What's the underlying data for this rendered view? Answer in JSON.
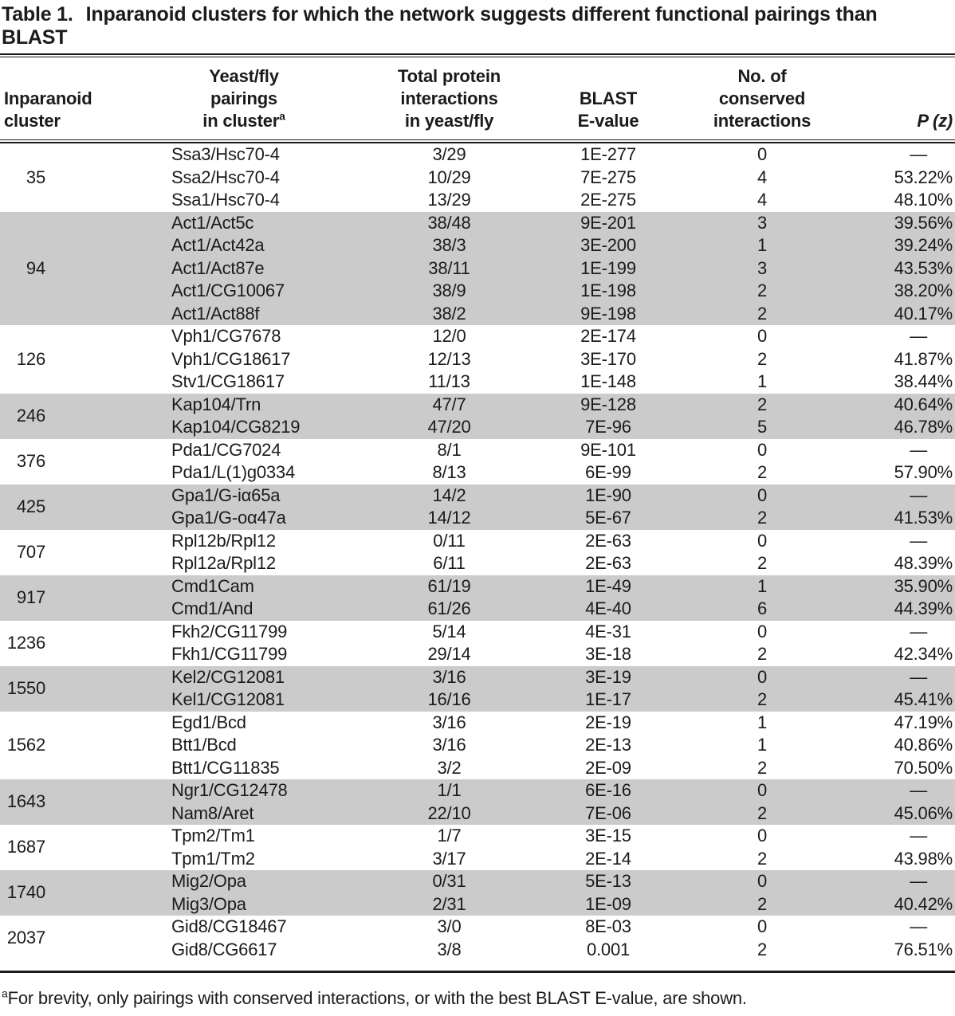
{
  "title": {
    "label": "Table 1.",
    "caption": "Inparanoid clusters for which the network suggests different functional pairings than BLAST"
  },
  "table": {
    "dash": "—",
    "shaded_band_color": "#cbcbcb",
    "rule_color": "#1a1a1a",
    "columns": [
      {
        "key": "cluster",
        "lines": [
          "Inparanoid",
          "cluster"
        ]
      },
      {
        "key": "pairing",
        "lines": [
          "Yeast/fly",
          "pairings",
          "in cluster"
        ],
        "sup": "a"
      },
      {
        "key": "total",
        "lines": [
          "Total protein",
          "interactions",
          "in yeast/fly"
        ]
      },
      {
        "key": "evalue",
        "lines": [
          "BLAST",
          "E-value"
        ]
      },
      {
        "key": "conserved",
        "lines": [
          "No. of",
          "conserved",
          "interactions"
        ]
      },
      {
        "key": "pz",
        "lines": [
          "P (z)"
        ],
        "italic": true
      }
    ],
    "groups": [
      {
        "cluster": "35",
        "shaded": false,
        "rows": [
          [
            "Ssa3/Hsc70-4",
            "3/29",
            "1E-277",
            "0",
            "—"
          ],
          [
            "Ssa2/Hsc70-4",
            "10/29",
            "7E-275",
            "4",
            "53.22%"
          ],
          [
            "Ssa1/Hsc70-4",
            "13/29",
            "2E-275",
            "4",
            "48.10%"
          ]
        ]
      },
      {
        "cluster": "94",
        "shaded": true,
        "rows": [
          [
            "Act1/Act5c",
            "38/48",
            "9E-201",
            "3",
            "39.56%"
          ],
          [
            "Act1/Act42a",
            "38/3",
            "3E-200",
            "1",
            "39.24%"
          ],
          [
            "Act1/Act87e",
            "38/11",
            "1E-199",
            "3",
            "43.53%"
          ],
          [
            "Act1/CG10067",
            "38/9",
            "1E-198",
            "2",
            "38.20%"
          ],
          [
            "Act1/Act88f",
            "38/2",
            "9E-198",
            "2",
            "40.17%"
          ]
        ]
      },
      {
        "cluster": "126",
        "shaded": false,
        "rows": [
          [
            "Vph1/CG7678",
            "12/0",
            "2E-174",
            "0",
            "—"
          ],
          [
            "Vph1/CG18617",
            "12/13",
            "3E-170",
            "2",
            "41.87%"
          ],
          [
            "Stv1/CG18617",
            "11/13",
            "1E-148",
            "1",
            "38.44%"
          ]
        ]
      },
      {
        "cluster": "246",
        "shaded": true,
        "rows": [
          [
            "Kap104/Trn",
            "47/7",
            "9E-128",
            "2",
            "40.64%"
          ],
          [
            "Kap104/CG8219",
            "47/20",
            "7E-96",
            "5",
            "46.78%"
          ]
        ]
      },
      {
        "cluster": "376",
        "shaded": false,
        "rows": [
          [
            "Pda1/CG7024",
            "8/1",
            "9E-101",
            "0",
            "—"
          ],
          [
            "Pda1/L(1)g0334",
            "8/13",
            "6E-99",
            "2",
            "57.90%"
          ]
        ]
      },
      {
        "cluster": "425",
        "shaded": true,
        "rows": [
          [
            "Gpa1/G-iα65a",
            "14/2",
            "1E-90",
            "0",
            "—"
          ],
          [
            "Gpa1/G-oα47a",
            "14/12",
            "5E-67",
            "2",
            "41.53%"
          ]
        ]
      },
      {
        "cluster": "707",
        "shaded": false,
        "rows": [
          [
            "Rpl12b/Rpl12",
            "0/11",
            "2E-63",
            "0",
            "—"
          ],
          [
            "Rpl12a/Rpl12",
            "6/11",
            "2E-63",
            "2",
            "48.39%"
          ]
        ]
      },
      {
        "cluster": "917",
        "shaded": true,
        "rows": [
          [
            "Cmd1Cam",
            "61/19",
            "1E-49",
            "1",
            "35.90%"
          ],
          [
            "Cmd1/And",
            "61/26",
            "4E-40",
            "6",
            "44.39%"
          ]
        ]
      },
      {
        "cluster": "1236",
        "shaded": false,
        "rows": [
          [
            "Fkh2/CG11799",
            "5/14",
            "4E-31",
            "0",
            "—"
          ],
          [
            "Fkh1/CG11799",
            "29/14",
            "3E-18",
            "2",
            "42.34%"
          ]
        ]
      },
      {
        "cluster": "1550",
        "shaded": true,
        "rows": [
          [
            "Kel2/CG12081",
            "3/16",
            "3E-19",
            "0",
            "—"
          ],
          [
            "Kel1/CG12081",
            "16/16",
            "1E-17",
            "2",
            "45.41%"
          ]
        ]
      },
      {
        "cluster": "1562",
        "shaded": false,
        "rows": [
          [
            "Egd1/Bcd",
            "3/16",
            "2E-19",
            "1",
            "47.19%"
          ],
          [
            "Btt1/Bcd",
            "3/16",
            "2E-13",
            "1",
            "40.86%"
          ],
          [
            "Btt1/CG11835",
            "3/2",
            "2E-09",
            "2",
            "70.50%"
          ]
        ]
      },
      {
        "cluster": "1643",
        "shaded": true,
        "rows": [
          [
            "Ngr1/CG12478",
            "1/1",
            "6E-16",
            "0",
            "—"
          ],
          [
            "Nam8/Aret",
            "22/10",
            "7E-06",
            "2",
            "45.06%"
          ]
        ]
      },
      {
        "cluster": "1687",
        "shaded": false,
        "rows": [
          [
            "Tpm2/Tm1",
            "1/7",
            "3E-15",
            "0",
            "—"
          ],
          [
            "Tpm1/Tm2",
            "3/17",
            "2E-14",
            "2",
            "43.98%"
          ]
        ]
      },
      {
        "cluster": "1740",
        "shaded": true,
        "rows": [
          [
            "Mig2/Opa",
            "0/31",
            "5E-13",
            "0",
            "—"
          ],
          [
            "Mig3/Opa",
            "2/31",
            "1E-09",
            "2",
            "40.42%"
          ]
        ]
      },
      {
        "cluster": "2037",
        "shaded": false,
        "rows": [
          [
            "Gid8/CG18467",
            "3/0",
            "8E-03",
            "0",
            "—"
          ],
          [
            "Gid8/CG6617",
            "3/8",
            "0.001",
            "2",
            "76.51%"
          ]
        ]
      }
    ]
  },
  "footnote": {
    "superscript": "a",
    "text": "For brevity, only pairings with conserved interactions, or with the best BLAST E-value, are shown."
  }
}
